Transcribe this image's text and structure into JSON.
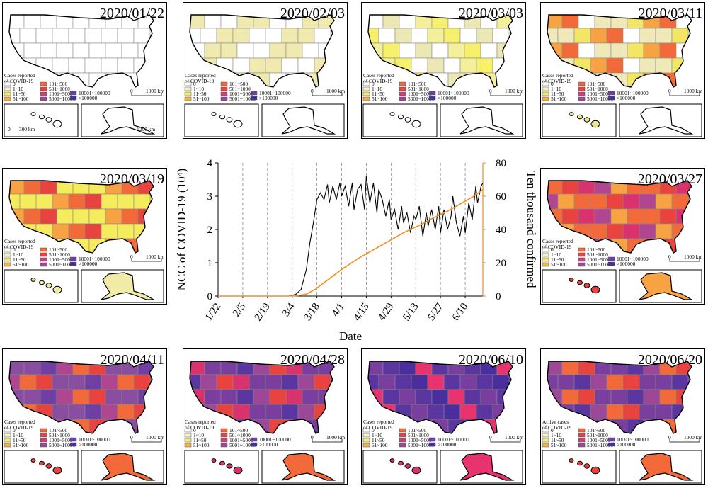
{
  "maps": [
    {
      "date": "2020/01/22",
      "legend_title": [
        "Cases reported",
        "of COVID-19"
      ],
      "scale_main": "1000 km",
      "scale_hawaii": "300 km",
      "scale_alaska": "1200 km",
      "fill": "#ffffff",
      "mix": [],
      "hawaii": "#ffffff",
      "alaska": "#ffffff"
    },
    {
      "date": "2020/02/03",
      "legend_title": [
        "Cases reported",
        "of COVID-19"
      ],
      "scale_main": "1000 km",
      "scale_hawaii": "",
      "scale_alaska": "",
      "fill": "#ffffff",
      "mix": [
        "#f0eab0",
        "#f0eab0"
      ],
      "hawaii": "#ffffff",
      "alaska": "#ffffff"
    },
    {
      "date": "2020/03/03",
      "legend_title": [
        "Cases reported",
        "of COVID-19"
      ],
      "scale_main": "1000 km",
      "scale_hawaii": "",
      "scale_alaska": "",
      "fill": "#ffffff",
      "mix": [
        "#f3ef9a",
        "#ece8b5",
        "#f7f06c"
      ],
      "hawaii": "#ffffff",
      "alaska": "#ffffff"
    },
    {
      "date": "2020/03/11",
      "legend_title": [
        "Cases reported",
        "of COVID-19"
      ],
      "scale_main": "1000 km",
      "scale_hawaii": "",
      "scale_alaska": "",
      "fill": "#efe9b9",
      "mix": [
        "#f3e664",
        "#f8a343",
        "#f26a3a",
        "#ffffff"
      ],
      "hawaii": "#eee58c",
      "alaska": "#ffffff"
    },
    {
      "date": "2020/03/19",
      "legend_title": [
        "Cases reported",
        "of COVID-19"
      ],
      "scale_main": "1000 km",
      "scale_hawaii": "",
      "scale_alaska": "",
      "fill": "#f4ec5c",
      "mix": [
        "#f8a343",
        "#f26a3a",
        "#e8433e",
        "#f4ec5c"
      ],
      "hawaii": "#f0eba6",
      "alaska": "#f0eba6"
    },
    {
      "date": "2020/03/27",
      "legend_title": [
        "Cases reported",
        "of COVID-19"
      ],
      "scale_main": "1000 km",
      "scale_hawaii": "",
      "scale_alaska": "",
      "fill": "#f26a3a",
      "mix": [
        "#e8433e",
        "#d8336e",
        "#b0468f",
        "#f8a343"
      ],
      "hawaii": "#e8433e",
      "alaska": "#f8a343"
    },
    {
      "date": "2020/04/11",
      "legend_title": [
        "Cases reported",
        "of COVID-19"
      ],
      "scale_main": "1000 km",
      "scale_hawaii": "",
      "scale_alaska": "",
      "fill": "#8a4ea0",
      "mix": [
        "#6f3fa3",
        "#b0468f",
        "#f26a3a",
        "#e8433e"
      ],
      "hawaii": "#e8433e",
      "alaska": "#f26a3a"
    },
    {
      "date": "2020/04/28",
      "legend_title": [
        "Cases reported",
        "of COVID-19"
      ],
      "scale_main": "1000 km",
      "scale_hawaii": "",
      "scale_alaska": "",
      "fill": "#7a3f9e",
      "mix": [
        "#5b35a0",
        "#9c4798",
        "#e8433e",
        "#d8336e"
      ],
      "hawaii": "#d8336e",
      "alaska": "#f26a3a"
    },
    {
      "date": "2020/06/10",
      "legend_title": [
        "Cases reported",
        "of COVID-19"
      ],
      "scale_main": "1000 km",
      "scale_hawaii": "",
      "scale_alaska": "",
      "fill": "#5b35a0",
      "mix": [
        "#4a2e9e",
        "#7a3f9e",
        "#e8336e"
      ],
      "hawaii": "#d8336e",
      "alaska": "#e8336e"
    },
    {
      "date": "2020/06/20",
      "legend_title": [
        "Active cases",
        "of COVID-19"
      ],
      "scale_main": "1000 km",
      "scale_hawaii": "",
      "scale_alaska": "",
      "fill": "#7a3f9e",
      "mix": [
        "#5b35a0",
        "#9c4798",
        "#f26a3a",
        "#e8433e"
      ],
      "hawaii": "#e8433e",
      "alaska": "#f26a3a"
    }
  ],
  "legend": [
    {
      "label": "0",
      "color": "#ffffff"
    },
    {
      "label": "1~10",
      "color": "#f5f1c8"
    },
    {
      "label": "11~50",
      "color": "#f1ec7c"
    },
    {
      "label": "51~100",
      "color": "#f4b24a"
    },
    {
      "label": "101~500",
      "color": "#f26a3a"
    },
    {
      "label": "501~1000",
      "color": "#e8433e"
    },
    {
      "label": "1001~5000",
      "color": "#c8437a"
    },
    {
      "label": "5001~10000",
      "color": "#9c4798"
    },
    {
      "label": "10001~100000",
      "color": "#6f3fa3"
    },
    {
      ">100000": "",
      "label": ">100000",
      "color": "#4a2e9e"
    }
  ],
  "colors": {
    "ncc": "#000000",
    "confirmed": "#f28e1c",
    "grid": "#888888"
  },
  "chart_data": {
    "type": "line",
    "xlabel": "Date",
    "ylabel_left": "NCC of COVID-19 (10⁴)",
    "ylabel_right": "Ten thousand confirmed",
    "x_ticks": [
      "1/22",
      "2/5",
      "2/19",
      "3/4",
      "3/18",
      "4/1",
      "4/15",
      "4/29",
      "5/13",
      "5/27",
      "6/10"
    ],
    "ylim_left": [
      0,
      4
    ],
    "ylim_right": [
      0,
      80
    ],
    "y_ticks_left": [
      "0",
      "1",
      "2",
      "3",
      "4"
    ],
    "y_ticks_right": [
      "0",
      "20",
      "40",
      "60",
      "80"
    ],
    "grid": "vertical dashed",
    "series": [
      {
        "name": "NCC of COVID-19",
        "axis": "left",
        "x": [
          0,
          40,
          44,
          47,
          50,
          52,
          54,
          56,
          58,
          60,
          62,
          63,
          65,
          67,
          69,
          70,
          72,
          74,
          76,
          77,
          79,
          81,
          83,
          84,
          86,
          88,
          90,
          91,
          93,
          95,
          97,
          98,
          100,
          102,
          104,
          105,
          107,
          109,
          111,
          112,
          114,
          116,
          118,
          119,
          121,
          123,
          125,
          126,
          128,
          130,
          132,
          133,
          135,
          137,
          139,
          140,
          142,
          144,
          146,
          147,
          149,
          150
        ],
        "values": [
          0,
          0,
          0.05,
          0.2,
          0.8,
          1.6,
          2.2,
          2.9,
          3.1,
          2.9,
          3.35,
          2.8,
          3.3,
          2.9,
          3.4,
          3.0,
          3.3,
          2.7,
          3.4,
          2.6,
          3.2,
          3.35,
          2.6,
          3.6,
          2.8,
          3.4,
          2.5,
          3.2,
          2.9,
          2.4,
          2.9,
          2.3,
          2.6,
          2.0,
          2.7,
          2.2,
          2.5,
          1.9,
          2.4,
          2.3,
          2.7,
          1.8,
          2.5,
          2.1,
          2.6,
          2.0,
          2.7,
          1.9,
          2.6,
          2.0,
          2.4,
          3.0,
          2.2,
          1.8,
          2.4,
          1.9,
          2.8,
          2.3,
          3.3,
          2.8,
          3.3,
          3.4
        ]
      },
      {
        "name": "Ten thousand confirmed",
        "axis": "right",
        "x": [
          0,
          40,
          45,
          50,
          55,
          60,
          65,
          70,
          75,
          80,
          85,
          90,
          95,
          100,
          105,
          110,
          115,
          120,
          125,
          130,
          135,
          140,
          145,
          150
        ],
        "values": [
          0,
          0,
          0.2,
          1.2,
          4,
          8,
          12,
          16,
          19.5,
          23,
          26,
          29,
          32,
          35,
          38,
          40.5,
          43,
          46,
          48.5,
          51,
          54,
          57,
          60,
          64
        ]
      }
    ]
  }
}
